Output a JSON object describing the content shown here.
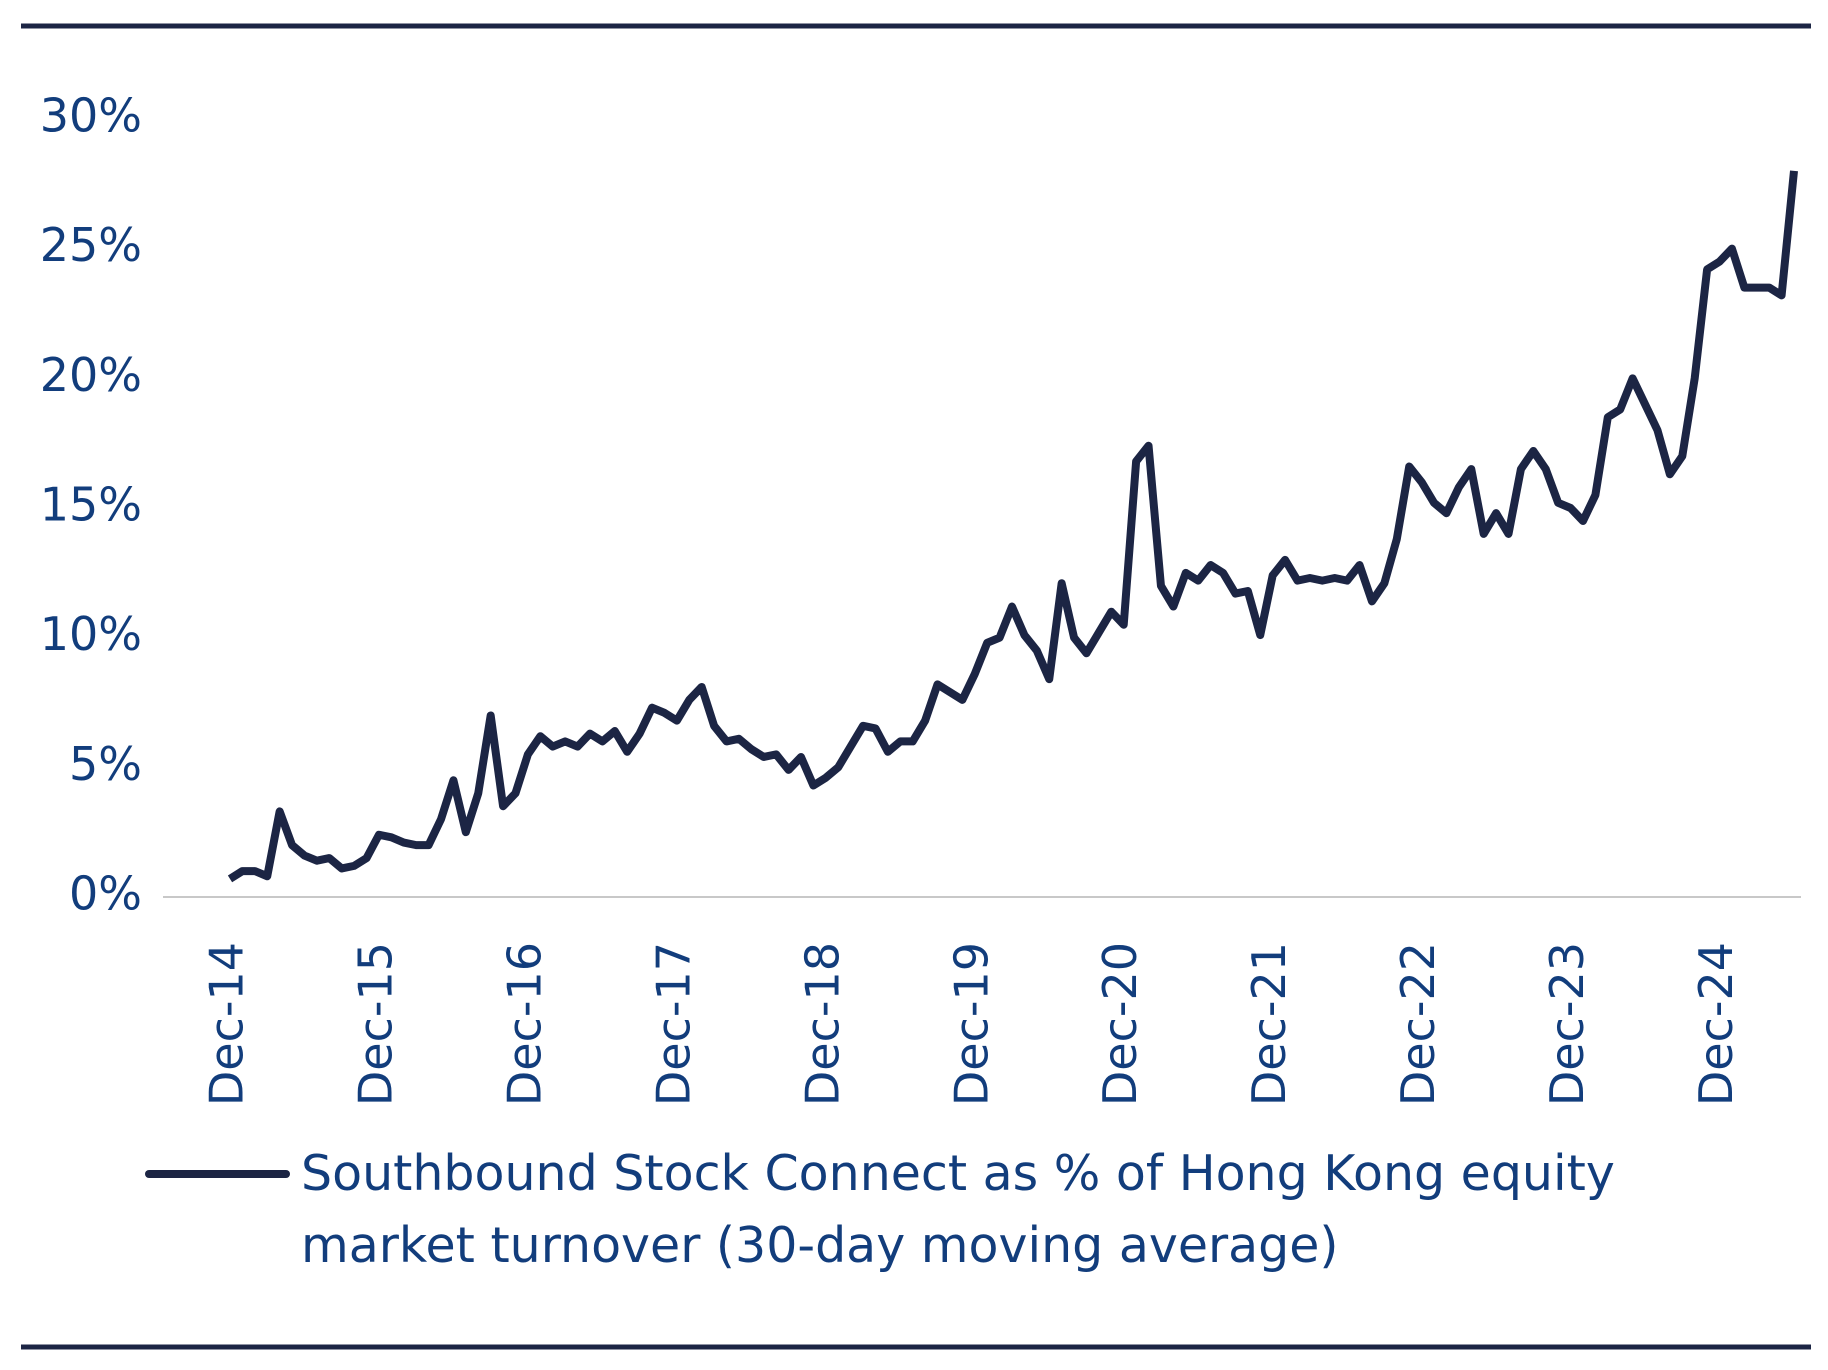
{
  "chart_data": {
    "type": "line",
    "x": [
      "2014-12",
      "2015-01",
      "2015-02",
      "2015-03",
      "2015-04",
      "2015-05",
      "2015-06",
      "2015-07",
      "2015-08",
      "2015-09",
      "2015-10",
      "2015-11",
      "2015-12",
      "2016-01",
      "2016-02",
      "2016-03",
      "2016-04",
      "2016-05",
      "2016-06",
      "2016-07",
      "2016-08",
      "2016-09",
      "2016-10",
      "2016-11",
      "2016-12",
      "2017-01",
      "2017-02",
      "2017-03",
      "2017-04",
      "2017-05",
      "2017-06",
      "2017-07",
      "2017-08",
      "2017-09",
      "2017-10",
      "2017-11",
      "2017-12",
      "2018-01",
      "2018-02",
      "2018-03",
      "2018-04",
      "2018-05",
      "2018-06",
      "2018-07",
      "2018-08",
      "2018-09",
      "2018-10",
      "2018-11",
      "2018-12",
      "2019-01",
      "2019-02",
      "2019-03",
      "2019-04",
      "2019-05",
      "2019-06",
      "2019-07",
      "2019-08",
      "2019-09",
      "2019-10",
      "2019-11",
      "2019-12",
      "2020-01",
      "2020-02",
      "2020-03",
      "2020-04",
      "2020-05",
      "2020-06",
      "2020-07",
      "2020-08",
      "2020-09",
      "2020-10",
      "2020-11",
      "2020-12",
      "2021-01",
      "2021-02",
      "2021-03",
      "2021-04",
      "2021-05",
      "2021-06",
      "2021-07",
      "2021-08",
      "2021-09",
      "2021-10",
      "2021-11",
      "2021-12",
      "2022-01",
      "2022-02",
      "2022-03",
      "2022-04",
      "2022-05",
      "2022-06",
      "2022-07",
      "2022-08",
      "2022-09",
      "2022-10",
      "2022-11",
      "2022-12",
      "2023-01",
      "2023-02",
      "2023-03",
      "2023-04",
      "2023-05",
      "2023-06",
      "2023-07",
      "2023-08",
      "2023-09",
      "2023-10",
      "2023-11",
      "2023-12",
      "2024-01",
      "2024-02",
      "2024-03",
      "2024-04",
      "2024-05",
      "2024-06",
      "2024-07",
      "2024-08",
      "2024-09",
      "2024-10",
      "2024-11",
      "2024-12",
      "2025-01",
      "2025-02",
      "2025-03",
      "2025-04",
      "2025-05",
      "2025-06"
    ],
    "series": [
      {
        "name": "Southbound Stock Connect as % of Hong Kong equity market turnover (30-day moving average)",
        "color": "#1c2544",
        "values": [
          0.7,
          1.0,
          1.0,
          0.8,
          3.3,
          2.0,
          1.6,
          1.4,
          1.5,
          1.1,
          1.2,
          1.5,
          2.4,
          2.3,
          2.1,
          2.0,
          2.0,
          3.0,
          4.5,
          2.5,
          4.0,
          7.0,
          3.5,
          4.0,
          5.5,
          6.2,
          5.8,
          6.0,
          5.8,
          6.3,
          6.0,
          6.4,
          5.6,
          6.3,
          7.3,
          7.1,
          6.8,
          7.6,
          8.1,
          6.6,
          6.0,
          6.1,
          5.7,
          5.4,
          5.5,
          4.9,
          5.4,
          4.3,
          4.6,
          5.0,
          5.8,
          6.6,
          6.5,
          5.6,
          6.0,
          6.0,
          6.8,
          8.2,
          7.9,
          7.6,
          8.6,
          9.8,
          10.0,
          11.2,
          10.1,
          9.5,
          8.4,
          12.1,
          10.0,
          9.4,
          10.2,
          11.0,
          10.5,
          16.8,
          17.4,
          12.0,
          11.2,
          12.5,
          12.2,
          12.8,
          12.5,
          11.7,
          11.8,
          10.1,
          12.4,
          13.0,
          12.2,
          12.3,
          12.2,
          12.3,
          12.2,
          12.8,
          11.4,
          12.1,
          13.8,
          16.6,
          16.0,
          15.2,
          14.8,
          15.8,
          16.5,
          14.0,
          14.8,
          14.0,
          16.5,
          17.2,
          16.5,
          15.2,
          15.0,
          14.5,
          15.5,
          18.5,
          18.8,
          20.0,
          19.0,
          18.0,
          16.3,
          17.0,
          20.0,
          24.2,
          24.5,
          25.0,
          23.5,
          23.5,
          23.5,
          23.2,
          28.0
        ]
      }
    ],
    "xlim": [
      "2014-12",
      "2025-06"
    ],
    "xticks": [
      {
        "value": "2014-12",
        "label": "Dec-14"
      },
      {
        "value": "2015-12",
        "label": "Dec-15"
      },
      {
        "value": "2016-12",
        "label": "Dec-16"
      },
      {
        "value": "2017-12",
        "label": "Dec-17"
      },
      {
        "value": "2018-12",
        "label": "Dec-18"
      },
      {
        "value": "2019-12",
        "label": "Dec-19"
      },
      {
        "value": "2020-12",
        "label": "Dec-20"
      },
      {
        "value": "2021-12",
        "label": "Dec-21"
      },
      {
        "value": "2022-12",
        "label": "Dec-22"
      },
      {
        "value": "2023-12",
        "label": "Dec-23"
      },
      {
        "value": "2024-12",
        "label": "Dec-24"
      }
    ],
    "ylim": [
      0,
      30
    ],
    "yticks": [
      {
        "value": 0,
        "label": "0%"
      },
      {
        "value": 5,
        "label": "5%"
      },
      {
        "value": 10,
        "label": "10%"
      },
      {
        "value": 15,
        "label": "15%"
      },
      {
        "value": 20,
        "label": "20%"
      },
      {
        "value": 25,
        "label": "25%"
      },
      {
        "value": 30,
        "label": "30%"
      }
    ],
    "grid": false
  }
}
